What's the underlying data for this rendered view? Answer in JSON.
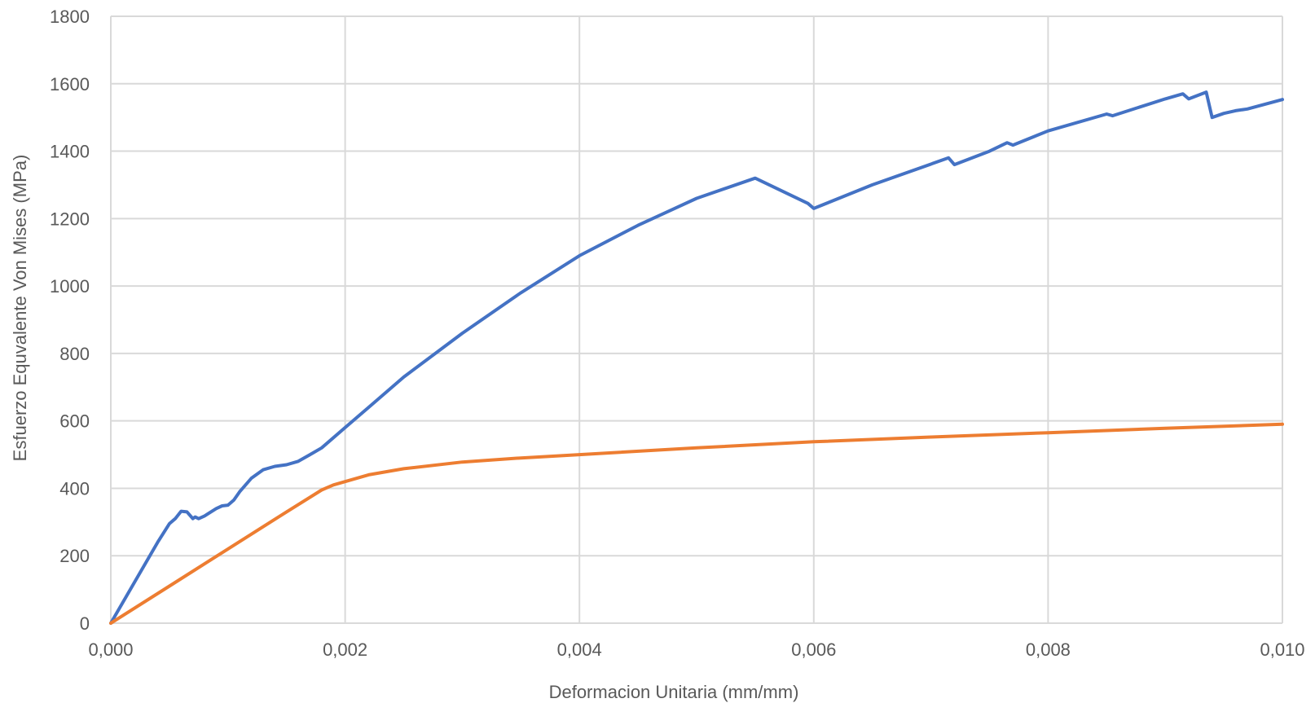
{
  "chart_data": {
    "type": "line",
    "xlabel": "Deformacion Unitaria (mm/mm)",
    "ylabel": "Esfuerzo Equvalente Von Mises (MPa)",
    "xlim": [
      0,
      0.01
    ],
    "ylim": [
      0,
      1800
    ],
    "grid": true,
    "legend": "none",
    "x_ticks": [
      "0,000",
      "0,002",
      "0,004",
      "0,006",
      "0,008",
      "0,010"
    ],
    "y_ticks": [
      "0",
      "200",
      "400",
      "600",
      "800",
      "1000",
      "1200",
      "1400",
      "1600",
      "1800"
    ],
    "series": [
      {
        "color": "#4472c4",
        "x": [
          0,
          0.0002,
          0.0004,
          0.0005,
          0.00055,
          0.0006,
          0.00065,
          0.0007,
          0.00072,
          0.00075,
          0.0008,
          0.0009,
          0.00095,
          0.001,
          0.00105,
          0.0011,
          0.0012,
          0.0013,
          0.0014,
          0.0015,
          0.0016,
          0.0017,
          0.0018,
          0.002,
          0.0022,
          0.0025,
          0.003,
          0.0035,
          0.004,
          0.0045,
          0.005,
          0.0055,
          0.00595,
          0.006,
          0.0065,
          0.00715,
          0.0072,
          0.0075,
          0.00765,
          0.0077,
          0.008,
          0.0085,
          0.00855,
          0.009,
          0.00915,
          0.0092,
          0.00935,
          0.0094,
          0.0095,
          0.0096,
          0.0097,
          0.01
        ],
        "y": [
          0,
          120,
          240,
          295,
          310,
          332,
          330,
          310,
          315,
          310,
          318,
          340,
          348,
          350,
          365,
          390,
          430,
          455,
          465,
          470,
          480,
          500,
          520,
          580,
          640,
          730,
          860,
          980,
          1090,
          1180,
          1260,
          1320,
          1245,
          1230,
          1300,
          1380,
          1360,
          1400,
          1425,
          1418,
          1460,
          1510,
          1505,
          1555,
          1570,
          1555,
          1575,
          1500,
          1512,
          1520,
          1525,
          1553
        ]
      },
      {
        "color": "#ed7d31",
        "x": [
          0,
          0.0005,
          0.001,
          0.0015,
          0.0018,
          0.0019,
          0.002,
          0.0022,
          0.0025,
          0.003,
          0.0035,
          0.004,
          0.005,
          0.006,
          0.007,
          0.008,
          0.009,
          0.01
        ],
        "y": [
          0,
          110,
          220,
          330,
          395,
          410,
          420,
          440,
          458,
          478,
          490,
          500,
          520,
          538,
          552,
          565,
          578,
          590
        ]
      }
    ]
  }
}
